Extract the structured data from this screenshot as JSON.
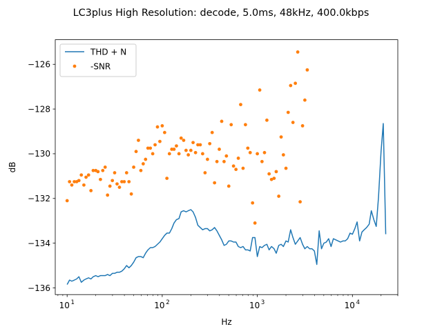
{
  "chart_data": {
    "type": "line",
    "title": "LC3plus High Resolution: decode, 5.0ms, 48kHz, 400.0kbps",
    "xlabel": "Hz",
    "ylabel": "dB",
    "xscale": "log",
    "xlim": [
      7.5,
      30000
    ],
    "ylim": [
      -136.3,
      -124.9
    ],
    "x_ticks": [
      {
        "value": 10,
        "label": "10",
        "exp": "1"
      },
      {
        "value": 100,
        "label": "10",
        "exp": "2"
      },
      {
        "value": 1000,
        "label": "10",
        "exp": "3"
      },
      {
        "value": 10000,
        "label": "10",
        "exp": "4"
      }
    ],
    "y_ticks": [
      {
        "value": -126,
        "label": "−126"
      },
      {
        "value": -128,
        "label": "−128"
      },
      {
        "value": -130,
        "label": "−130"
      },
      {
        "value": -132,
        "label": "−132"
      },
      {
        "value": -134,
        "label": "−134"
      },
      {
        "value": -136,
        "label": "−136"
      }
    ],
    "grid": false,
    "legend_position": "upper-left",
    "series": [
      {
        "name": "THD + N",
        "style": "line",
        "color": "#1f77b4",
        "points": [
          [
            10,
            -135.85
          ],
          [
            10.6,
            -135.65
          ],
          [
            11.2,
            -135.7
          ],
          [
            11.9,
            -135.65
          ],
          [
            12.6,
            -135.6
          ],
          [
            13.3,
            -135.5
          ],
          [
            14.1,
            -135.75
          ],
          [
            15,
            -135.65
          ],
          [
            15.8,
            -135.6
          ],
          [
            16.8,
            -135.55
          ],
          [
            17.8,
            -135.6
          ],
          [
            18.8,
            -135.5
          ],
          [
            20,
            -135.45
          ],
          [
            21.1,
            -135.5
          ],
          [
            22.4,
            -135.45
          ],
          [
            23.7,
            -135.45
          ],
          [
            25.1,
            -135.45
          ],
          [
            26.6,
            -135.4
          ],
          [
            28.2,
            -135.45
          ],
          [
            29.9,
            -135.35
          ],
          [
            31.6,
            -135.35
          ],
          [
            33.5,
            -135.3
          ],
          [
            35.5,
            -135.3
          ],
          [
            37.6,
            -135.25
          ],
          [
            39.8,
            -135.15
          ],
          [
            42.2,
            -135.0
          ],
          [
            44.7,
            -135.1
          ],
          [
            47.3,
            -135.0
          ],
          [
            50.1,
            -134.85
          ],
          [
            53.1,
            -134.65
          ],
          [
            56.2,
            -134.6
          ],
          [
            59.6,
            -134.6
          ],
          [
            63.1,
            -134.65
          ],
          [
            66.8,
            -134.45
          ],
          [
            70.8,
            -134.3
          ],
          [
            75,
            -134.2
          ],
          [
            79.4,
            -134.2
          ],
          [
            84.1,
            -134.15
          ],
          [
            89.1,
            -134.05
          ],
          [
            94.4,
            -133.95
          ],
          [
            100,
            -133.8
          ],
          [
            106,
            -133.65
          ],
          [
            112,
            -133.55
          ],
          [
            119,
            -133.55
          ],
          [
            126,
            -133.35
          ],
          [
            133,
            -133.1
          ],
          [
            141,
            -132.95
          ],
          [
            150,
            -132.9
          ],
          [
            158,
            -132.6
          ],
          [
            168,
            -132.55
          ],
          [
            178,
            -132.6
          ],
          [
            188,
            -132.55
          ],
          [
            200,
            -132.5
          ],
          [
            211,
            -132.6
          ],
          [
            224,
            -132.85
          ],
          [
            237,
            -133.2
          ],
          [
            251,
            -133.3
          ],
          [
            266,
            -133.4
          ],
          [
            282,
            -133.35
          ],
          [
            299,
            -133.35
          ],
          [
            316,
            -133.45
          ],
          [
            335,
            -133.4
          ],
          [
            355,
            -133.3
          ],
          [
            376,
            -133.45
          ],
          [
            398,
            -133.65
          ],
          [
            422,
            -133.85
          ],
          [
            447,
            -134.1
          ],
          [
            473,
            -134.05
          ],
          [
            501,
            -133.9
          ],
          [
            531,
            -133.9
          ],
          [
            562,
            -133.95
          ],
          [
            596,
            -133.95
          ],
          [
            631,
            -134.15
          ],
          [
            668,
            -134.2
          ],
          [
            708,
            -134.15
          ],
          [
            750,
            -134.3
          ],
          [
            794,
            -134.3
          ],
          [
            841,
            -134.35
          ],
          [
            891,
            -133.75
          ],
          [
            944,
            -133.75
          ],
          [
            1000,
            -134.6
          ],
          [
            1060,
            -134.15
          ],
          [
            1120,
            -134.2
          ],
          [
            1190,
            -134.1
          ],
          [
            1260,
            -134.05
          ],
          [
            1330,
            -134.3
          ],
          [
            1410,
            -134.15
          ],
          [
            1500,
            -134.25
          ],
          [
            1580,
            -134.45
          ],
          [
            1680,
            -134.1
          ],
          [
            1780,
            -134.05
          ],
          [
            1880,
            -134.15
          ],
          [
            2000,
            -133.9
          ],
          [
            2110,
            -133.95
          ],
          [
            2240,
            -133.4
          ],
          [
            2370,
            -133.75
          ],
          [
            2510,
            -134.05
          ],
          [
            2660,
            -133.9
          ],
          [
            2820,
            -133.75
          ],
          [
            2990,
            -134.05
          ],
          [
            3160,
            -134.25
          ],
          [
            3350,
            -134.15
          ],
          [
            3550,
            -134.25
          ],
          [
            3760,
            -134.25
          ],
          [
            3980,
            -134.35
          ],
          [
            4220,
            -134.95
          ],
          [
            4470,
            -133.45
          ],
          [
            4730,
            -134.25
          ],
          [
            5010,
            -134.0
          ],
          [
            5310,
            -133.95
          ],
          [
            5620,
            -133.8
          ],
          [
            5960,
            -134.15
          ],
          [
            6310,
            -133.8
          ],
          [
            6680,
            -133.85
          ],
          [
            7080,
            -133.9
          ],
          [
            7500,
            -133.95
          ],
          [
            7940,
            -133.9
          ],
          [
            8410,
            -133.9
          ],
          [
            8910,
            -133.8
          ],
          [
            9440,
            -133.55
          ],
          [
            10000,
            -133.6
          ],
          [
            10600,
            -133.35
          ],
          [
            11200,
            -133.05
          ],
          [
            11900,
            -133.9
          ],
          [
            12600,
            -133.5
          ],
          [
            13300,
            -133.4
          ],
          [
            14100,
            -133.3
          ],
          [
            15000,
            -133.15
          ],
          [
            15800,
            -132.55
          ],
          [
            16800,
            -132.95
          ],
          [
            17800,
            -133.25
          ],
          [
            18800,
            -131.95
          ],
          [
            20000,
            -129.9
          ],
          [
            21100,
            -128.65
          ],
          [
            22400,
            -133.6
          ]
        ]
      },
      {
        "name": "-SNR",
        "style": "scatter",
        "color": "#ff7f0e",
        "points": [
          [
            10,
            -132.1
          ],
          [
            10.6,
            -131.25
          ],
          [
            11.2,
            -131.4
          ],
          [
            11.9,
            -131.25
          ],
          [
            12.6,
            -131.25
          ],
          [
            13.3,
            -131.2
          ],
          [
            14.1,
            -130.95
          ],
          [
            15,
            -131.4
          ],
          [
            15.8,
            -131.05
          ],
          [
            16.8,
            -130.95
          ],
          [
            17.8,
            -131.65
          ],
          [
            18.8,
            -130.75
          ],
          [
            20,
            -130.75
          ],
          [
            21.1,
            -130.8
          ],
          [
            22.4,
            -131.15
          ],
          [
            23.7,
            -130.75
          ],
          [
            25.1,
            -130.6
          ],
          [
            26.6,
            -131.85
          ],
          [
            28.2,
            -131.45
          ],
          [
            29.9,
            -131.2
          ],
          [
            31.6,
            -130.85
          ],
          [
            33.5,
            -131.35
          ],
          [
            35.5,
            -131.5
          ],
          [
            37.6,
            -131.25
          ],
          [
            39.8,
            -131.25
          ],
          [
            42.2,
            -130.85
          ],
          [
            44.7,
            -131.25
          ],
          [
            47.3,
            -131.8
          ],
          [
            50.1,
            -130.6
          ],
          [
            53.1,
            -129.9
          ],
          [
            56.2,
            -129.4
          ],
          [
            59.6,
            -130.75
          ],
          [
            63.1,
            -130.45
          ],
          [
            66.8,
            -130.25
          ],
          [
            70.8,
            -129.75
          ],
          [
            75,
            -129.75
          ],
          [
            79.4,
            -130.0
          ],
          [
            84.1,
            -129.6
          ],
          [
            89.1,
            -128.8
          ],
          [
            94.4,
            -129.45
          ],
          [
            100,
            -128.75
          ],
          [
            106,
            -129.05
          ],
          [
            112,
            -131.1
          ],
          [
            119,
            -130.0
          ],
          [
            126,
            -129.8
          ],
          [
            133,
            -129.8
          ],
          [
            141,
            -129.65
          ],
          [
            150,
            -130.0
          ],
          [
            158,
            -129.3
          ],
          [
            168,
            -129.4
          ],
          [
            178,
            -129.85
          ],
          [
            188,
            -130.05
          ],
          [
            200,
            -129.85
          ],
          [
            211,
            -129.5
          ],
          [
            224,
            -129.95
          ],
          [
            237,
            -129.6
          ],
          [
            251,
            -129.6
          ],
          [
            266,
            -130.0
          ],
          [
            282,
            -130.85
          ],
          [
            299,
            -130.25
          ],
          [
            316,
            -129.55
          ],
          [
            335,
            -129.05
          ],
          [
            355,
            -131.3
          ],
          [
            376,
            -130.35
          ],
          [
            398,
            -129.8
          ],
          [
            422,
            -128.55
          ],
          [
            447,
            -130.35
          ],
          [
            473,
            -130.1
          ],
          [
            501,
            -131.45
          ],
          [
            531,
            -128.7
          ],
          [
            562,
            -130.55
          ],
          [
            596,
            -130.7
          ],
          [
            631,
            -130.2
          ],
          [
            668,
            -127.8
          ],
          [
            708,
            -130.65
          ],
          [
            750,
            -128.7
          ],
          [
            794,
            -129.75
          ],
          [
            841,
            -129.95
          ],
          [
            891,
            -132.2
          ],
          [
            944,
            -133.1
          ],
          [
            1000,
            -130.0
          ],
          [
            1060,
            -127.15
          ],
          [
            1120,
            -130.35
          ],
          [
            1190,
            -129.95
          ],
          [
            1260,
            -128.5
          ],
          [
            1330,
            -130.9
          ],
          [
            1410,
            -131.15
          ],
          [
            1500,
            -131.1
          ],
          [
            1580,
            -130.8
          ],
          [
            1680,
            -131.9
          ],
          [
            1780,
            -129.25
          ],
          [
            1880,
            -130.05
          ],
          [
            2000,
            -130.65
          ],
          [
            2110,
            -128.15
          ],
          [
            2240,
            -126.95
          ],
          [
            2370,
            -128.6
          ],
          [
            2510,
            -126.85
          ],
          [
            2660,
            -125.45
          ],
          [
            2820,
            -132.15
          ],
          [
            2990,
            -128.75
          ],
          [
            3160,
            -127.6
          ],
          [
            3350,
            -126.25
          ]
        ]
      }
    ]
  }
}
